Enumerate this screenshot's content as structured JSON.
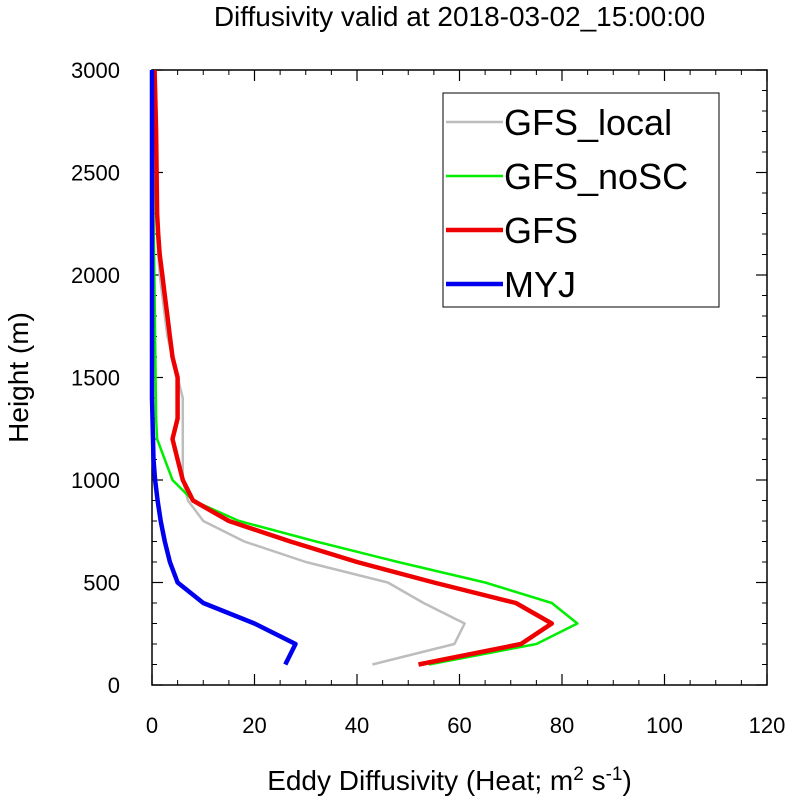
{
  "chart_data": {
    "type": "line",
    "title": "Diffusivity valid at 2018-03-02_15:00:00",
    "xlabel": "Eddy Diffusivity (Heat; m",
    "xlabel_sup1": "2",
    "xlabel_mid": " s",
    "xlabel_sup2": "-1",
    "xlabel_end": ")",
    "ylabel": "Height (m)",
    "xlim": [
      0,
      120
    ],
    "ylim": [
      0,
      3000
    ],
    "xticks": [
      0,
      20,
      40,
      60,
      80,
      100,
      120
    ],
    "yticks": [
      0,
      500,
      1000,
      1500,
      2000,
      2500,
      3000
    ],
    "legend_position": "top-right",
    "series": [
      {
        "name": "GFS_local",
        "color": "#bdbdbd",
        "width": 2.5,
        "points": [
          [
            43,
            100
          ],
          [
            59,
            200
          ],
          [
            61,
            300
          ],
          [
            53,
            400
          ],
          [
            46,
            500
          ],
          [
            30,
            600
          ],
          [
            18,
            700
          ],
          [
            10,
            800
          ],
          [
            7,
            900
          ],
          [
            6,
            1000
          ],
          [
            6,
            1100
          ],
          [
            6,
            1200
          ],
          [
            6,
            1300
          ],
          [
            6,
            1400
          ],
          [
            5,
            1500
          ],
          [
            4,
            1600
          ],
          [
            3,
            1700
          ],
          [
            2.5,
            1800
          ],
          [
            2,
            1900
          ],
          [
            1.5,
            2000
          ],
          [
            1.2,
            2100
          ],
          [
            1,
            2200
          ],
          [
            0.8,
            2300
          ],
          [
            0.7,
            2500
          ],
          [
            0.6,
            2700
          ],
          [
            0.5,
            2900
          ],
          [
            0.5,
            3000
          ]
        ]
      },
      {
        "name": "GFS_noSC",
        "color": "#00ee00",
        "width": 2.5,
        "points": [
          [
            54,
            100
          ],
          [
            75,
            200
          ],
          [
            83,
            300
          ],
          [
            78,
            400
          ],
          [
            65,
            500
          ],
          [
            48,
            600
          ],
          [
            32,
            700
          ],
          [
            17,
            800
          ],
          [
            8,
            900
          ],
          [
            4,
            1000
          ],
          [
            2.5,
            1100
          ],
          [
            1,
            1200
          ],
          [
            0.8,
            1300
          ],
          [
            0.7,
            1500
          ],
          [
            0.6,
            1700
          ],
          [
            0.5,
            1900
          ],
          [
            0.4,
            2100
          ],
          [
            0.3,
            2300
          ],
          [
            0.2,
            2500
          ],
          [
            0.1,
            2700
          ],
          [
            0.1,
            3000
          ]
        ]
      },
      {
        "name": "GFS",
        "color": "#ee0000",
        "width": 4.5,
        "points": [
          [
            52,
            100
          ],
          [
            72,
            200
          ],
          [
            78,
            300
          ],
          [
            71,
            400
          ],
          [
            55,
            500
          ],
          [
            40,
            600
          ],
          [
            27,
            700
          ],
          [
            15,
            800
          ],
          [
            8,
            900
          ],
          [
            6,
            1000
          ],
          [
            5,
            1100
          ],
          [
            4,
            1200
          ],
          [
            5,
            1300
          ],
          [
            5,
            1400
          ],
          [
            5,
            1500
          ],
          [
            4,
            1600
          ],
          [
            3.5,
            1700
          ],
          [
            3,
            1800
          ],
          [
            2.5,
            1900
          ],
          [
            2,
            2000
          ],
          [
            1.5,
            2100
          ],
          [
            1.2,
            2200
          ],
          [
            1,
            2300
          ],
          [
            0.9,
            2500
          ],
          [
            0.8,
            2700
          ],
          [
            0.6,
            2900
          ],
          [
            0.5,
            3000
          ]
        ]
      },
      {
        "name": "MYJ",
        "color": "#0000ee",
        "width": 4.5,
        "points": [
          [
            26,
            100
          ],
          [
            28,
            200
          ],
          [
            20,
            300
          ],
          [
            10,
            400
          ],
          [
            5,
            500
          ],
          [
            3.5,
            600
          ],
          [
            2.5,
            700
          ],
          [
            1.7,
            800
          ],
          [
            1.1,
            900
          ],
          [
            0.6,
            1000
          ],
          [
            0.3,
            1100
          ],
          [
            0.2,
            1200
          ],
          [
            0.1,
            1300
          ],
          [
            0,
            1400
          ],
          [
            0,
            3000
          ]
        ]
      }
    ]
  }
}
